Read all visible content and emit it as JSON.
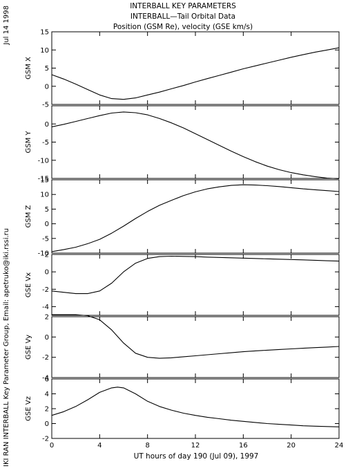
{
  "header": {
    "title_line1": "INTERBALL KEY PARAMETERS",
    "title_line2": "INTERBALL—Tail Orbital Data",
    "title_line3": "Position (GSM Re), velocity (GSE km/s)"
  },
  "side": {
    "date": "Jul 14 1998",
    "credit": "IKI RAN INTERBALL Key Parameter Group, Email: apetruko@iki.rssi.ru"
  },
  "chart_data": {
    "type": "line",
    "xlabel": "UT hours of day 190 (Jul 09), 1997",
    "xlim": [
      0,
      24
    ],
    "xticks": [
      0,
      4,
      8,
      12,
      16,
      20,
      24
    ],
    "grid": false,
    "panels": [
      {
        "ylabel": "GSM X",
        "ylim": [
          -5,
          15
        ],
        "yticks": [
          -5,
          0,
          5,
          10,
          15
        ],
        "x": [
          0,
          1,
          2,
          3,
          4,
          5,
          6,
          7,
          8,
          9,
          10,
          11,
          12,
          13,
          14,
          15,
          16,
          17,
          18,
          19,
          20,
          21,
          22,
          23,
          24
        ],
        "y": [
          3.2,
          2.0,
          0.6,
          -0.9,
          -2.4,
          -3.4,
          -3.6,
          -3.2,
          -2.4,
          -1.6,
          -0.7,
          0.2,
          1.2,
          2.1,
          3.0,
          3.9,
          4.8,
          5.6,
          6.4,
          7.2,
          8.0,
          8.7,
          9.4,
          10.0,
          10.6
        ]
      },
      {
        "ylabel": "GSM Y",
        "ylim": [
          -15,
          5
        ],
        "yticks": [
          -15,
          -10,
          -5,
          0
        ],
        "x": [
          0,
          1,
          2,
          3,
          4,
          5,
          6,
          7,
          8,
          9,
          10,
          11,
          12,
          13,
          14,
          15,
          16,
          17,
          18,
          19,
          20,
          21,
          22,
          23,
          24
        ],
        "y": [
          -0.8,
          -0.1,
          0.7,
          1.5,
          2.3,
          3.0,
          3.3,
          3.1,
          2.5,
          1.5,
          0.3,
          -1.1,
          -2.7,
          -4.3,
          -5.9,
          -7.5,
          -9.0,
          -10.4,
          -11.6,
          -12.6,
          -13.4,
          -14.0,
          -14.5,
          -14.9,
          -15.1
        ]
      },
      {
        "ylabel": "GSM Z",
        "ylim": [
          -10,
          15
        ],
        "yticks": [
          -10,
          -5,
          0,
          5,
          10,
          15
        ],
        "x": [
          0,
          1,
          2,
          3,
          4,
          5,
          6,
          7,
          8,
          9,
          10,
          11,
          12,
          13,
          14,
          15,
          16,
          17,
          18,
          19,
          20,
          21,
          22,
          23,
          24
        ],
        "y": [
          -9.5,
          -8.8,
          -8.0,
          -6.8,
          -5.3,
          -3.2,
          -0.8,
          1.8,
          4.2,
          6.3,
          8.0,
          9.6,
          10.9,
          11.9,
          12.6,
          13.1,
          13.3,
          13.2,
          13.0,
          12.7,
          12.3,
          11.9,
          11.6,
          11.3,
          11.0
        ]
      },
      {
        "ylabel": "GSE Vx",
        "ylim": [
          -5,
          2
        ],
        "yticks": [
          -4,
          -2,
          0,
          2
        ],
        "x": [
          0,
          1,
          2,
          3,
          4,
          5,
          6,
          7,
          8,
          9,
          10,
          11,
          12,
          13,
          14,
          15,
          16,
          17,
          18,
          19,
          20,
          21,
          22,
          23,
          24
        ],
        "y": [
          -2.2,
          -2.35,
          -2.5,
          -2.5,
          -2.2,
          -1.3,
          0.0,
          1.0,
          1.55,
          1.75,
          1.8,
          1.78,
          1.75,
          1.7,
          1.66,
          1.62,
          1.58,
          1.54,
          1.5,
          1.46,
          1.42,
          1.38,
          1.33,
          1.28,
          1.24
        ]
      },
      {
        "ylabel": "GSE Vy",
        "ylim": [
          -4,
          2
        ],
        "yticks": [
          -4,
          -2,
          0,
          2
        ],
        "x": [
          0,
          1,
          2,
          3,
          4,
          5,
          6,
          7,
          8,
          9,
          10,
          11,
          12,
          13,
          14,
          15,
          16,
          17,
          18,
          19,
          20,
          21,
          22,
          23,
          24
        ],
        "y": [
          2.2,
          2.2,
          2.2,
          2.1,
          1.7,
          0.7,
          -0.6,
          -1.6,
          -2.0,
          -2.1,
          -2.05,
          -1.95,
          -1.85,
          -1.75,
          -1.65,
          -1.55,
          -1.45,
          -1.37,
          -1.3,
          -1.23,
          -1.17,
          -1.11,
          -1.05,
          -0.99,
          -0.93
        ]
      },
      {
        "ylabel": "GSE Vz",
        "ylim": [
          -2,
          6
        ],
        "yticks": [
          -2,
          0,
          2,
          4,
          6
        ],
        "x": [
          0,
          1,
          2,
          3,
          4,
          5,
          5.5,
          6,
          7,
          8,
          9,
          10,
          11,
          12,
          13,
          14,
          15,
          16,
          17,
          18,
          19,
          20,
          21,
          22,
          23,
          24
        ],
        "y": [
          1.1,
          1.6,
          2.3,
          3.2,
          4.2,
          4.8,
          4.9,
          4.8,
          4.0,
          3.0,
          2.3,
          1.8,
          1.4,
          1.1,
          0.85,
          0.65,
          0.45,
          0.3,
          0.15,
          0.0,
          -0.1,
          -0.2,
          -0.3,
          -0.35,
          -0.4,
          -0.45
        ]
      }
    ]
  }
}
